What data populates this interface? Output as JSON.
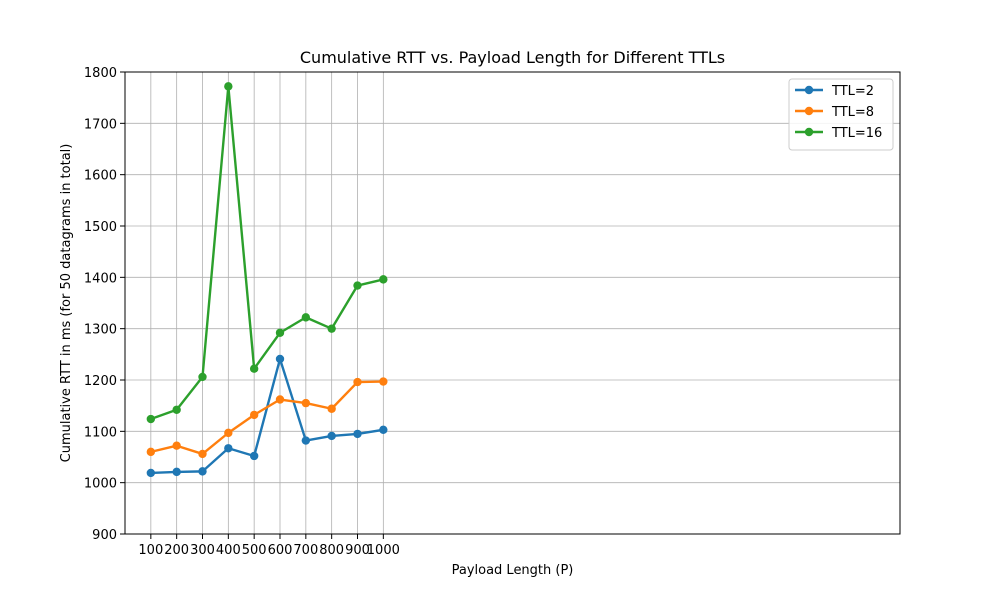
{
  "chart_data": {
    "type": "line",
    "title": "Cumulative RTT vs. Payload Length for Different TTLs",
    "xlabel": "Payload Length (P)",
    "ylabel": "Cumulative RTT in ms (for 50 datagrams in total)",
    "x": [
      100,
      200,
      300,
      400,
      500,
      600,
      700,
      800,
      900,
      1000
    ],
    "x_tick_labels": [
      "100",
      "200",
      "300",
      "400",
      "500",
      "600",
      "700",
      "800",
      "900",
      "1000"
    ],
    "y_ticks": [
      900,
      1000,
      1100,
      1200,
      1300,
      1400,
      1500,
      1600,
      1700,
      1800
    ],
    "y_tick_labels": [
      "900",
      "1000",
      "1100",
      "1200",
      "1300",
      "1400",
      "1500",
      "1600",
      "1700",
      "1800"
    ],
    "ylim": [
      900,
      1800
    ],
    "xlim": [
      0,
      3000
    ],
    "grid": true,
    "legend_position": "top-right",
    "series": [
      {
        "name": "TTL=2",
        "color": "#1f77b4",
        "values": [
          1019,
          1021,
          1022,
          1067,
          1052,
          1241,
          1082,
          1091,
          1095,
          1103
        ]
      },
      {
        "name": "TTL=8",
        "color": "#ff7f0e",
        "values": [
          1060,
          1072,
          1056,
          1097,
          1132,
          1162,
          1155,
          1144,
          1196,
          1197
        ]
      },
      {
        "name": "TTL=16",
        "color": "#2ca02c",
        "values": [
          1124,
          1142,
          1206,
          1772,
          1222,
          1292,
          1322,
          1300,
          1384,
          1396
        ]
      }
    ]
  }
}
